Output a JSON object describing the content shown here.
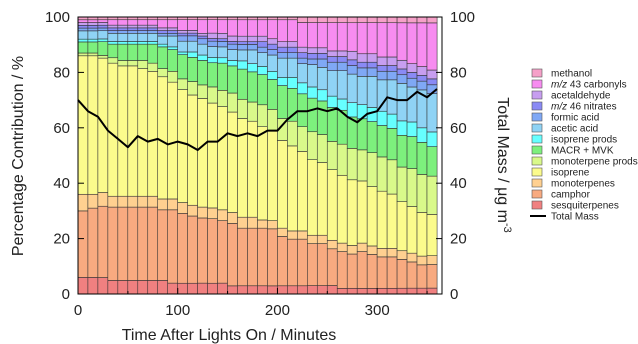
{
  "chart_data": {
    "type": "bar",
    "subtype": "stacked-percent-with-line",
    "title": "",
    "xlabel": "Time After Lights On / Minutes",
    "ylabel_left": "Percentage Contribution / %",
    "ylabel_right_main": "Total Mass / μg m",
    "ylabel_right_sup": "-3",
    "xlim": [
      0,
      365
    ],
    "ylim_left": [
      0,
      100
    ],
    "ylim_right": [
      0,
      100
    ],
    "x_ticks": [
      0,
      100,
      200,
      300
    ],
    "x_tick_labels": [
      "0",
      "100",
      "200",
      "300"
    ],
    "y_ticks": [
      0,
      20,
      40,
      60,
      80,
      100
    ],
    "y_tick_labels": [
      "0",
      "20",
      "40",
      "60",
      "80",
      "100"
    ],
    "grid": false,
    "legend_position": "right",
    "stack_order": [
      "sesquiterpenes",
      "camphor",
      "monoterpenes",
      "isoprene",
      "monoterpene prods",
      "MACR + MVK",
      "isoprene prods",
      "acetic acid",
      "formic acid",
      "m/z 46 nitrates",
      "acetaldehyde",
      "m/z 43 carbonyls",
      "methanol"
    ],
    "x": [
      5,
      15,
      25,
      35,
      45,
      55,
      65,
      75,
      85,
      95,
      105,
      115,
      125,
      135,
      145,
      155,
      165,
      175,
      185,
      195,
      205,
      215,
      225,
      235,
      245,
      255,
      265,
      275,
      285,
      295,
      305,
      315,
      325,
      335,
      345,
      355
    ],
    "series": [
      {
        "name": "sesquiterpenes",
        "key": "sesquiterpenes",
        "color": "#f08080",
        "values": [
          6,
          6,
          6,
          5,
          5,
          5,
          5,
          5,
          5,
          4,
          4,
          4,
          4,
          4,
          4,
          3,
          3,
          3,
          3,
          3,
          3,
          3,
          3,
          3,
          3,
          3,
          2,
          2,
          2,
          2,
          2,
          2,
          2,
          2,
          2,
          2
        ]
      },
      {
        "name": "camphor",
        "key": "camphor",
        "color": "#f8aa80",
        "values": [
          24,
          25,
          26,
          27,
          27,
          27,
          27,
          27,
          26,
          27,
          26,
          25,
          24,
          24,
          23,
          23,
          21,
          21,
          21,
          21,
          18,
          17,
          17,
          15,
          15,
          13,
          13,
          12,
          13,
          12,
          11,
          11,
          10,
          9,
          8,
          8
        ]
      },
      {
        "name": "monoterpenes",
        "key": "monoterpenes",
        "color": "#ffd090",
        "values": [
          6,
          5,
          5,
          4,
          4,
          4,
          4,
          4,
          4,
          4,
          4,
          4,
          4,
          4,
          4,
          4,
          4,
          4,
          3,
          3,
          3,
          3,
          3,
          3,
          3,
          3,
          3,
          3,
          3,
          3,
          3,
          3,
          3,
          3,
          3,
          3
        ]
      },
      {
        "name": "isoprene",
        "key": "isoprene",
        "color": "#fbfb8c",
        "values": [
          50,
          50,
          49,
          49,
          48,
          48,
          47,
          46,
          45,
          43,
          42,
          41,
          40,
          39,
          38,
          37,
          36,
          35,
          34,
          33,
          32,
          31,
          29,
          27,
          26,
          25,
          24,
          23,
          22,
          21,
          20,
          19,
          17,
          16,
          15,
          14
        ]
      },
      {
        "name": "monoterpene prods",
        "key": "monoterpene_prods",
        "color": "#d9f98a",
        "values": [
          1,
          1,
          1,
          2,
          2,
          2,
          3,
          3,
          3,
          4,
          4,
          5,
          5,
          6,
          6,
          7,
          7,
          7,
          8,
          8,
          8,
          9,
          9,
          10,
          10,
          10,
          11,
          11,
          11,
          12,
          12,
          12,
          12,
          13,
          13,
          13
        ]
      },
      {
        "name": "MACR + MVK",
        "key": "macr_mvk",
        "color": "#7df07d",
        "values": [
          4,
          4,
          5,
          5,
          6,
          6,
          6,
          7,
          8,
          8,
          9,
          9,
          9,
          9,
          10,
          10,
          11,
          11,
          11,
          11,
          12,
          12,
          12,
          12,
          12,
          12,
          12,
          11,
          11,
          11,
          11,
          11,
          11,
          11,
          11,
          10
        ]
      },
      {
        "name": "isoprene prods",
        "key": "isoprene_prods",
        "color": "#66ffff",
        "values": [
          1,
          1,
          1,
          1,
          1,
          1,
          1,
          1,
          1,
          1,
          1,
          2,
          2,
          2,
          2,
          2,
          3,
          3,
          3,
          3,
          3,
          4,
          4,
          4,
          4,
          4,
          4,
          5,
          5,
          5,
          5,
          5,
          5,
          5,
          5,
          5
        ]
      },
      {
        "name": "acetic acid",
        "key": "acetic_acid",
        "color": "#8fd3f5",
        "values": [
          3,
          3,
          3,
          3,
          3,
          3,
          3,
          3,
          3,
          4,
          4,
          4,
          4,
          4,
          4,
          4,
          4,
          5,
          5,
          6,
          7,
          7,
          7,
          8,
          8,
          9,
          10,
          10,
          10,
          11,
          11,
          12,
          13,
          12,
          13,
          13
        ]
      },
      {
        "name": "formic acid",
        "key": "formic_acid",
        "color": "#7fa8f5",
        "values": [
          1,
          1,
          1,
          1,
          1,
          1,
          1,
          1,
          1,
          1,
          2,
          2,
          2,
          2,
          2,
          2,
          2,
          2,
          2,
          2,
          2,
          2,
          2,
          2,
          3,
          3,
          3,
          3,
          3,
          3,
          3,
          3,
          3,
          3,
          3,
          3
        ]
      },
      {
        "name": "m/z 46 nitrates",
        "key": "mz46_nitrates",
        "color": "#8a8af5",
        "values": [
          1,
          1,
          1,
          1,
          1,
          1,
          1,
          1,
          1,
          1,
          1,
          1,
          1,
          1,
          1,
          1,
          1,
          1,
          2,
          2,
          2,
          2,
          2,
          2,
          2,
          2,
          2,
          2,
          2,
          2,
          2,
          2,
          2,
          2,
          2,
          2
        ]
      },
      {
        "name": "acetaldehyde",
        "key": "acetaldehyde",
        "color": "#c79ef0",
        "values": [
          1,
          1,
          1,
          1,
          1,
          1,
          1,
          1,
          1,
          1,
          1,
          1,
          1,
          2,
          2,
          2,
          2,
          2,
          2,
          2,
          2,
          2,
          2,
          2,
          2,
          2,
          2,
          3,
          3,
          3,
          3,
          3,
          3,
          3,
          3,
          3
        ]
      },
      {
        "name": "m/z 43 carbonyls",
        "key": "mz43_carbonyls",
        "color": "#f78cf0",
        "values": [
          1,
          1,
          1,
          2,
          2,
          2,
          2,
          2,
          3,
          3,
          4,
          4,
          5,
          5,
          5,
          6,
          6,
          6,
          6,
          7,
          8,
          8,
          9,
          9,
          9,
          10,
          10,
          10,
          11,
          11,
          12,
          12,
          13,
          14,
          15,
          16
        ]
      },
      {
        "name": "methanol",
        "key": "methanol",
        "color": "#f5a0c8",
        "values": [
          1,
          1,
          1,
          1,
          1,
          1,
          1,
          1,
          1,
          1,
          1,
          1,
          1,
          1,
          1,
          1,
          1,
          1,
          1,
          1,
          1,
          1,
          2,
          2,
          2,
          2,
          2,
          2,
          2,
          2,
          2,
          2,
          2,
          2,
          2,
          2
        ]
      }
    ],
    "line": {
      "name": "Total Mass",
      "color": "#000000",
      "axis": "right",
      "x": [
        0,
        10,
        20,
        30,
        40,
        50,
        60,
        70,
        80,
        90,
        100,
        110,
        120,
        130,
        140,
        150,
        160,
        170,
        180,
        190,
        200,
        210,
        220,
        230,
        240,
        250,
        260,
        270,
        280,
        290,
        300,
        310,
        320,
        330,
        340,
        350,
        360
      ],
      "y": [
        70,
        66,
        64,
        59,
        56,
        53,
        57,
        55,
        56,
        54,
        55,
        54,
        52,
        55,
        55,
        58,
        57,
        58,
        57,
        59,
        59,
        63,
        66,
        66,
        67,
        66,
        67,
        64,
        62,
        65,
        66,
        71,
        70,
        70,
        73,
        71,
        74
      ]
    },
    "legend": [
      {
        "label_html": "methanol",
        "color": "#f5a0c8",
        "type": "box"
      },
      {
        "label_html": "<tspan font-style=\"italic\">m/z</tspan> 43 carbonyls",
        "color": "#f78cf0",
        "type": "box"
      },
      {
        "label_html": "acetaldehyde",
        "color": "#c79ef0",
        "type": "box"
      },
      {
        "label_html": "<tspan font-style=\"italic\">m/z</tspan> 46 nitrates",
        "color": "#8a8af5",
        "type": "box"
      },
      {
        "label_html": "formic acid",
        "color": "#7fa8f5",
        "type": "box"
      },
      {
        "label_html": "acetic acid",
        "color": "#8fd3f5",
        "type": "box"
      },
      {
        "label_html": "isoprene prods",
        "color": "#66ffff",
        "type": "box"
      },
      {
        "label_html": "MACR + MVK",
        "color": "#7df07d",
        "type": "box"
      },
      {
        "label_html": "monoterpene prods",
        "color": "#d9f98a",
        "type": "box"
      },
      {
        "label_html": "isoprene",
        "color": "#fbfb8c",
        "type": "box"
      },
      {
        "label_html": "monoterpenes",
        "color": "#ffd090",
        "type": "box"
      },
      {
        "label_html": "camphor",
        "color": "#f8aa80",
        "type": "box"
      },
      {
        "label_html": "sesquiterpenes",
        "color": "#f08080",
        "type": "box"
      },
      {
        "label_html": "Total Mass",
        "color": "#000000",
        "type": "line"
      }
    ]
  }
}
